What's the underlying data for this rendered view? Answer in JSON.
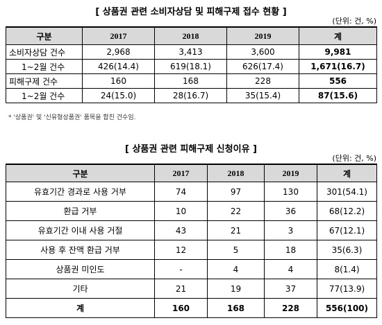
{
  "table1": {
    "title": "[ 상품권 관련 소비자상담 및 피해구제 접수 현황 ]",
    "unit": "(단위: 건, %)",
    "header": [
      "구분",
      "2017",
      "2018",
      "2019",
      "계"
    ],
    "rows": [
      [
        "소비자상담 건수",
        "2,968",
        "3,413",
        "3,600",
        "9,981"
      ],
      [
        "1~2월 건수",
        "426(14.4)",
        "619(18.1)",
        "626(17.4)",
        "1,671(16.7)"
      ],
      [
        "피해구제 건수",
        "160",
        "168",
        "228",
        "556"
      ],
      [
        "1~2월 건수",
        "24(15.0)",
        "28(16.7)",
        "35(15.4)",
        "87(15.6)"
      ]
    ]
  },
  "note": "* '상품권' 및 '신유형상품권' 품목을 합친 건수임.",
  "table2": {
    "title": "[ 상품권 관련 피해구제 신청이유 ]",
    "unit": "(단위: 건, %)",
    "header": [
      "구분",
      "2017",
      "2018",
      "2019",
      "계"
    ],
    "rows": [
      [
        "유효기간 경과로 사용 거부",
        "74",
        "97",
        "130",
        "301(54.1)"
      ],
      [
        "환급 거부",
        "10",
        "22",
        "36",
        "68(12.2)"
      ],
      [
        "유효기간 이내 사용 거절",
        "43",
        "21",
        "3",
        "67(12.1)"
      ],
      [
        "사용 후 잔액 환급 거부",
        "12",
        "5",
        "18",
        "35(6.3)"
      ],
      [
        "상품권 미인도",
        "-",
        "4",
        "4",
        "8(1.4)"
      ],
      [
        "기타",
        "21",
        "19",
        "37",
        "77(13.9)"
      ],
      [
        "계",
        "160",
        "168",
        "228",
        "556(100)"
      ]
    ]
  }
}
